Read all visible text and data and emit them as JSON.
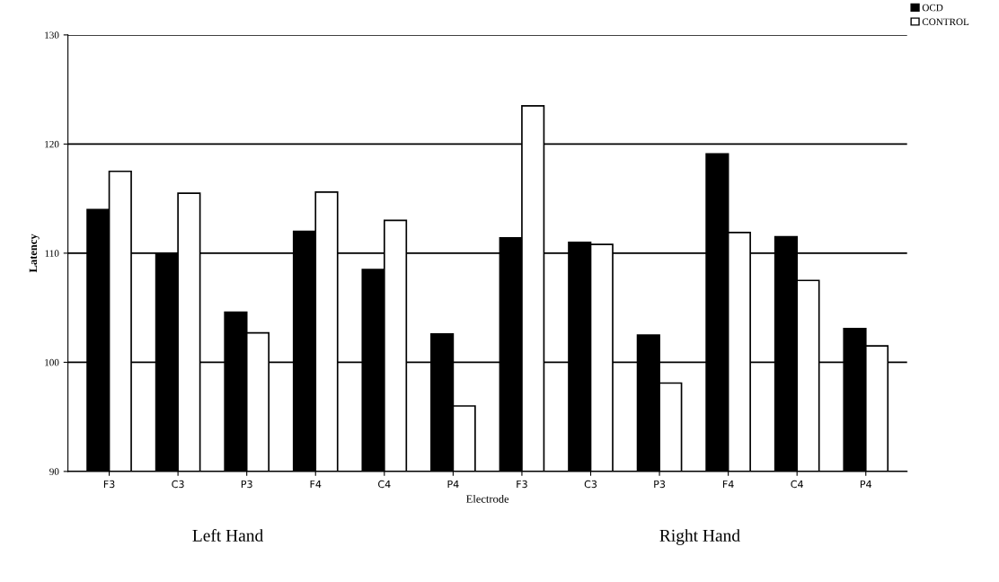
{
  "chart_data": {
    "type": "bar",
    "xlabel": "Electrode",
    "ylabel": "Latency",
    "categories": [
      "F3",
      "C3",
      "P3",
      "F4",
      "C4",
      "P4",
      "F3",
      "C3",
      "P3",
      "F4",
      "C4",
      "P4"
    ],
    "series": [
      {
        "name": "OCD",
        "color": "#000000",
        "values": [
          114,
          110,
          104.6,
          112,
          108.5,
          102.6,
          111.4,
          111,
          102.5,
          119.1,
          111.5,
          103.1
        ]
      },
      {
        "name": "CONTROL",
        "color": "#ffffff",
        "values": [
          117.5,
          115.5,
          102.7,
          115.6,
          113,
          96,
          123.5,
          110.8,
          98.1,
          111.9,
          107.5,
          101.5
        ]
      }
    ],
    "ylim": [
      90,
      130
    ],
    "yticks": [
      90,
      100,
      110,
      120,
      130
    ],
    "grid": "y",
    "legend": "top right",
    "annotations": [
      "Left Hand",
      "Right Hand"
    ]
  }
}
